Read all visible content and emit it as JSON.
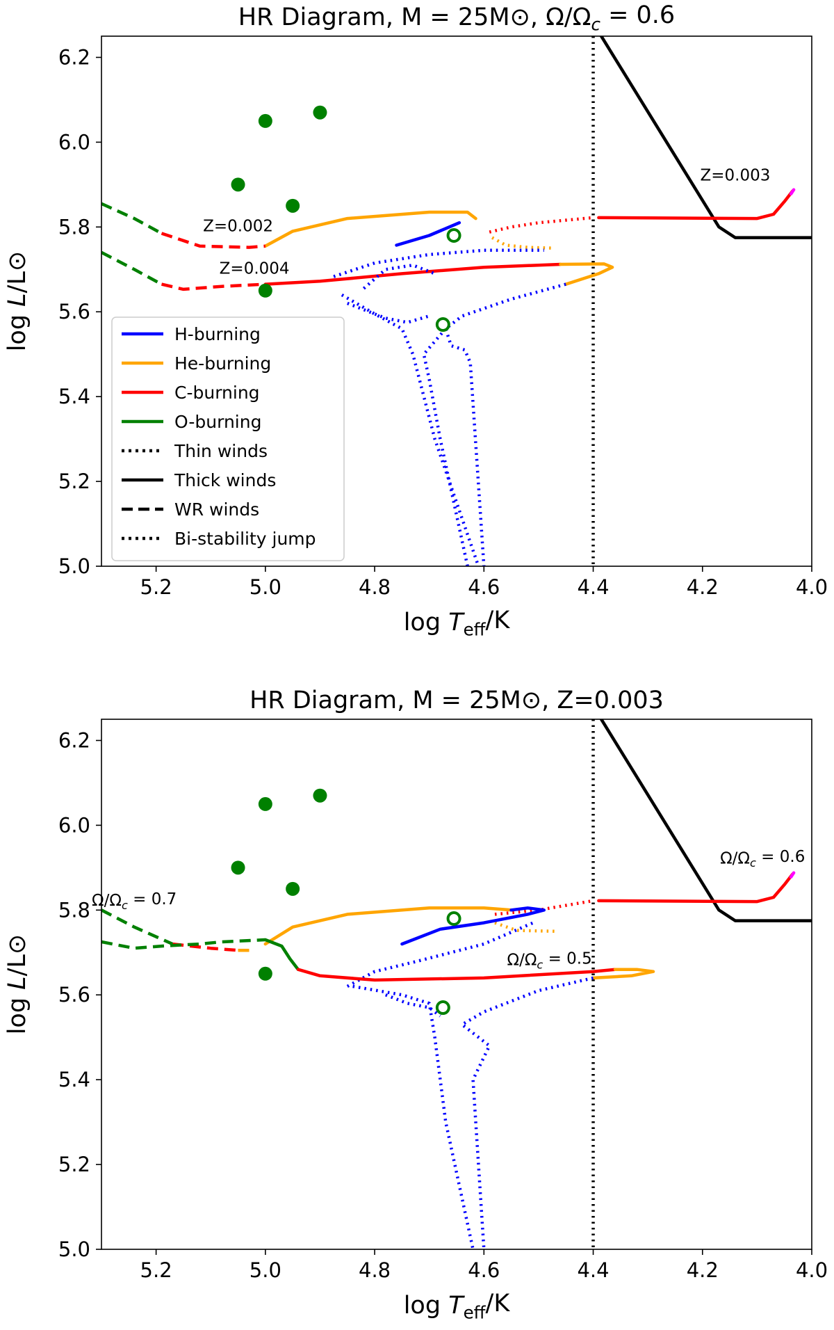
{
  "chart_data": [
    {
      "type": "line",
      "title": "HR Diagram, M = 25M⊙, Ω/Ωc = 0.6",
      "xlabel": "log Teff/K",
      "ylabel": "log L/L⊙",
      "xlim": [
        5.3,
        4.0
      ],
      "ylim": [
        5.0,
        6.25
      ],
      "xticks": [
        "5.2",
        "5.0",
        "4.8",
        "4.6",
        "4.4",
        "4.2",
        "4.0"
      ],
      "yticks": [
        "5.0",
        "5.2",
        "5.4",
        "5.6",
        "5.8",
        "6.0",
        "6.2"
      ],
      "grid": false,
      "legend_position": "lower-left",
      "legend": [
        {
          "label": "H-burning",
          "color": "#0000ff",
          "style": "solid"
        },
        {
          "label": "He-burning",
          "color": "#ffa500",
          "style": "solid"
        },
        {
          "label": "C-burning",
          "color": "#ff0000",
          "style": "solid"
        },
        {
          "label": "O-burning",
          "color": "#008000",
          "style": "solid"
        },
        {
          "label": "Thin winds",
          "color": "#000000",
          "style": "dotted"
        },
        {
          "label": "Thick winds",
          "color": "#000000",
          "style": "solid"
        },
        {
          "label": "WR winds",
          "color": "#000000",
          "style": "dashed"
        },
        {
          "label": "Bi-stability jump",
          "color": "#000000",
          "style": "dotted"
        }
      ],
      "vline": {
        "x": 4.4,
        "style": "dotted",
        "color": "#000000"
      },
      "markers": {
        "filled": [
          [
            5.0,
            6.05
          ],
          [
            4.9,
            6.07
          ],
          [
            5.05,
            5.9
          ],
          [
            4.95,
            5.85
          ],
          [
            5.0,
            5.65
          ]
        ],
        "open": [
          [
            4.655,
            5.78
          ],
          [
            4.675,
            5.57
          ]
        ],
        "color": "#008000"
      },
      "annotations": [
        {
          "text": "Z=0.002",
          "x": 5.05,
          "y": 5.79
        },
        {
          "text": "Z=0.004",
          "x": 5.02,
          "y": 5.69
        },
        {
          "text": "Z=0.003",
          "x": 4.14,
          "y": 5.91
        }
      ],
      "series": [
        {
          "color": "#000000",
          "style": "solid",
          "points": [
            [
              4.39,
              6.26
            ],
            [
              4.17,
              5.8
            ],
            [
              4.14,
              5.775
            ],
            [
              4.0,
              5.775
            ]
          ]
        },
        {
          "color": "#ff0000",
          "style": "solid",
          "points": [
            [
              4.39,
              5.822
            ],
            [
              4.1,
              5.82
            ],
            [
              4.07,
              5.83
            ],
            [
              4.05,
              5.86
            ],
            [
              4.035,
              5.885
            ]
          ]
        },
        {
          "color": "#ff00ff",
          "style": "solid",
          "points": [
            [
              4.038,
              5.878
            ],
            [
              4.033,
              5.888
            ]
          ]
        },
        {
          "color": "#ff0000",
          "style": "dotted",
          "points": [
            [
              4.59,
              5.788
            ],
            [
              4.55,
              5.8
            ],
            [
              4.5,
              5.81
            ],
            [
              4.4,
              5.822
            ]
          ]
        },
        {
          "color": "#ffa500",
          "style": "dotted",
          "points": [
            [
              4.585,
              5.775
            ],
            [
              4.56,
              5.757
            ],
            [
              4.52,
              5.752
            ],
            [
              4.47,
              5.75
            ]
          ]
        },
        {
          "color": "#0000ff",
          "style": "dotted",
          "points": [
            [
              4.875,
              5.683
            ],
            [
              4.8,
              5.715
            ],
            [
              4.7,
              5.735
            ],
            [
              4.6,
              5.745
            ],
            [
              4.49,
              5.745
            ]
          ]
        },
        {
          "color": "#0000ff",
          "style": "solid",
          "points": [
            [
              4.76,
              5.757
            ],
            [
              4.7,
              5.78
            ],
            [
              4.645,
              5.81
            ]
          ]
        },
        {
          "color": "#ffa500",
          "style": "solid",
          "points": [
            [
              5.0,
              5.755
            ],
            [
              4.95,
              5.79
            ],
            [
              4.85,
              5.82
            ],
            [
              4.7,
              5.835
            ],
            [
              4.63,
              5.835
            ],
            [
              4.615,
              5.82
            ]
          ]
        },
        {
          "color": "#ff0000",
          "style": "dashed",
          "points": [
            [
              5.19,
              5.785
            ],
            [
              5.12,
              5.755
            ],
            [
              5.03,
              5.752
            ],
            [
              5.0,
              5.755
            ]
          ]
        },
        {
          "color": "#008000",
          "style": "dashed",
          "points": [
            [
              5.3,
              5.855
            ],
            [
              5.24,
              5.82
            ],
            [
              5.19,
              5.785
            ]
          ]
        },
        {
          "color": "#ff0000",
          "style": "solid",
          "points": [
            [
              5.0,
              5.665
            ],
            [
              4.9,
              5.672
            ],
            [
              4.75,
              5.69
            ],
            [
              4.6,
              5.705
            ],
            [
              4.46,
              5.712
            ]
          ]
        },
        {
          "color": "#ffa500",
          "style": "solid",
          "points": [
            [
              4.46,
              5.712
            ],
            [
              4.38,
              5.713
            ],
            [
              4.365,
              5.705
            ],
            [
              4.39,
              5.69
            ],
            [
              4.45,
              5.665
            ]
          ]
        },
        {
          "color": "#ff0000",
          "style": "dashed",
          "points": [
            [
              5.19,
              5.665
            ],
            [
              5.15,
              5.653
            ],
            [
              5.08,
              5.66
            ],
            [
              5.0,
              5.665
            ]
          ]
        },
        {
          "color": "#008000",
          "style": "dashed",
          "points": [
            [
              5.3,
              5.74
            ],
            [
              5.24,
              5.7
            ],
            [
              5.19,
              5.665
            ]
          ]
        },
        {
          "color": "#0000ff",
          "style": "dotted",
          "points": [
            [
              4.45,
              5.665
            ],
            [
              4.55,
              5.63
            ],
            [
              4.64,
              5.59
            ],
            [
              4.67,
              5.56
            ],
            [
              4.66,
              5.52
            ],
            [
              4.635,
              5.51
            ],
            [
              4.625,
              5.48
            ],
            [
              4.6,
              5.0
            ]
          ]
        },
        {
          "color": "#0000ff",
          "style": "dotted",
          "points": [
            [
              4.67,
              5.56
            ],
            [
              4.71,
              5.5
            ],
            [
              4.7,
              5.44
            ],
            [
              4.68,
              5.3
            ],
            [
              4.63,
              5.0
            ]
          ]
        },
        {
          "color": "#0000ff",
          "style": "dotted",
          "points": [
            [
              4.82,
              5.655
            ],
            [
              4.78,
              5.7
            ],
            [
              4.73,
              5.71
            ],
            [
              4.69,
              5.69
            ]
          ]
        },
        {
          "color": "#0000ff",
          "style": "dotted",
          "points": [
            [
              4.86,
              5.64
            ],
            [
              4.8,
              5.595
            ],
            [
              4.75,
              5.56
            ],
            [
              4.73,
              5.5
            ],
            [
              4.72,
              5.45
            ],
            [
              4.69,
              5.3
            ],
            [
              4.61,
              5.0
            ]
          ]
        },
        {
          "color": "#0000ff",
          "style": "dotted",
          "points": [
            [
              4.85,
              5.62
            ],
            [
              4.78,
              5.585
            ],
            [
              4.74,
              5.575
            ],
            [
              4.7,
              5.59
            ]
          ]
        }
      ]
    },
    {
      "type": "line",
      "title": "HR Diagram, M = 25M⊙, Z=0.003",
      "xlabel": "log Teff/K",
      "ylabel": "log L/L⊙",
      "xlim": [
        5.3,
        4.0
      ],
      "ylim": [
        5.0,
        6.25
      ],
      "xticks": [
        "5.2",
        "5.0",
        "4.8",
        "4.6",
        "4.4",
        "4.2",
        "4.0"
      ],
      "yticks": [
        "5.0",
        "5.2",
        "5.4",
        "5.6",
        "5.8",
        "6.0",
        "6.2"
      ],
      "grid": false,
      "vline": {
        "x": 4.4,
        "style": "dotted",
        "color": "#000000"
      },
      "markers": {
        "filled": [
          [
            5.0,
            6.05
          ],
          [
            4.9,
            6.07
          ],
          [
            5.05,
            5.9
          ],
          [
            4.95,
            5.85
          ],
          [
            5.0,
            5.65
          ]
        ],
        "open": [
          [
            4.655,
            5.78
          ],
          [
            4.675,
            5.57
          ]
        ],
        "color": "#008000"
      },
      "annotations": [
        {
          "text": "Ω/Ωc = 0.7",
          "x": 5.24,
          "y": 5.81
        },
        {
          "text": "Ω/Ωc = 0.6",
          "x": 4.09,
          "y": 5.91
        },
        {
          "text": "Ω/Ωc = 0.5",
          "x": 4.48,
          "y": 5.67
        }
      ],
      "series": [
        {
          "color": "#000000",
          "style": "solid",
          "points": [
            [
              4.39,
              6.26
            ],
            [
              4.17,
              5.8
            ],
            [
              4.14,
              5.775
            ],
            [
              4.0,
              5.775
            ]
          ]
        },
        {
          "color": "#ff0000",
          "style": "solid",
          "points": [
            [
              4.39,
              5.822
            ],
            [
              4.1,
              5.82
            ],
            [
              4.07,
              5.83
            ],
            [
              4.05,
              5.86
            ],
            [
              4.035,
              5.885
            ]
          ]
        },
        {
          "color": "#ff00ff",
          "style": "solid",
          "points": [
            [
              4.038,
              5.878
            ],
            [
              4.033,
              5.888
            ]
          ]
        },
        {
          "color": "#ff0000",
          "style": "dotted",
          "points": [
            [
              4.58,
              5.79
            ],
            [
              4.5,
              5.8
            ],
            [
              4.4,
              5.822
            ]
          ]
        },
        {
          "color": "#ffa500",
          "style": "dotted",
          "points": [
            [
              4.58,
              5.77
            ],
            [
              4.54,
              5.752
            ],
            [
              4.47,
              5.75
            ]
          ]
        },
        {
          "color": "#ffa500",
          "style": "solid",
          "points": [
            [
              5.0,
              5.72
            ],
            [
              4.95,
              5.76
            ],
            [
              4.85,
              5.79
            ],
            [
              4.7,
              5.805
            ],
            [
              4.6,
              5.805
            ],
            [
              4.55,
              5.8
            ]
          ]
        },
        {
          "color": "#0000ff",
          "style": "solid",
          "points": [
            [
              4.75,
              5.72
            ],
            [
              4.68,
              5.755
            ],
            [
              4.6,
              5.77
            ],
            [
              4.52,
              5.79
            ],
            [
              4.49,
              5.8
            ],
            [
              4.52,
              5.805
            ],
            [
              4.55,
              5.8
            ]
          ]
        },
        {
          "color": "#0000ff",
          "style": "dotted",
          "points": [
            [
              4.85,
              5.62
            ],
            [
              4.8,
              5.655
            ],
            [
              4.72,
              5.68
            ],
            [
              4.6,
              5.72
            ],
            [
              4.51,
              5.77
            ]
          ]
        },
        {
          "color": "#ff0000",
          "style": "dashed",
          "points": [
            [
              5.17,
              5.72
            ],
            [
              5.1,
              5.71
            ],
            [
              5.05,
              5.705
            ]
          ]
        },
        {
          "color": "#ffa500",
          "style": "dashed",
          "points": [
            [
              5.05,
              5.705
            ],
            [
              5.02,
              5.705
            ]
          ]
        },
        {
          "color": "#008000",
          "style": "dashed",
          "points": [
            [
              5.3,
              5.8
            ],
            [
              5.24,
              5.76
            ],
            [
              5.17,
              5.72
            ]
          ]
        },
        {
          "color": "#008000",
          "style": "dashed",
          "points": [
            [
              5.3,
              5.725
            ],
            [
              5.24,
              5.71
            ],
            [
              5.19,
              5.715
            ],
            [
              5.12,
              5.72
            ],
            [
              5.08,
              5.725
            ],
            [
              5.0,
              5.73
            ]
          ]
        },
        {
          "color": "#008000",
          "style": "solid",
          "points": [
            [
              5.0,
              5.73
            ],
            [
              4.97,
              5.715
            ],
            [
              4.955,
              5.685
            ],
            [
              4.94,
              5.66
            ]
          ]
        },
        {
          "color": "#ff0000",
          "style": "solid",
          "points": [
            [
              4.94,
              5.66
            ],
            [
              4.9,
              5.645
            ],
            [
              4.8,
              5.635
            ],
            [
              4.6,
              5.64
            ],
            [
              4.4,
              5.655
            ],
            [
              4.36,
              5.66
            ]
          ]
        },
        {
          "color": "#ffa500",
          "style": "solid",
          "points": [
            [
              4.36,
              5.66
            ],
            [
              4.32,
              5.66
            ],
            [
              4.29,
              5.655
            ],
            [
              4.33,
              5.645
            ],
            [
              4.4,
              5.64
            ]
          ]
        },
        {
          "color": "#0000ff",
          "style": "dotted",
          "points": [
            [
              4.4,
              5.64
            ],
            [
              4.5,
              5.61
            ],
            [
              4.6,
              5.56
            ],
            [
              4.64,
              5.53
            ],
            [
              4.62,
              5.51
            ],
            [
              4.59,
              5.48
            ],
            [
              4.62,
              5.4
            ],
            [
              4.6,
              5.0
            ]
          ]
        },
        {
          "color": "#0000ff",
          "style": "dotted",
          "points": [
            [
              4.84,
              5.62
            ],
            [
              4.75,
              5.6
            ],
            [
              4.7,
              5.58
            ],
            [
              4.69,
              5.5
            ],
            [
              4.67,
              5.3
            ],
            [
              4.62,
              5.0
            ]
          ]
        },
        {
          "color": "#0000ff",
          "style": "dotted",
          "points": [
            [
              4.78,
              5.6
            ],
            [
              4.74,
              5.58
            ],
            [
              4.7,
              5.57
            ],
            [
              4.68,
              5.55
            ]
          ]
        }
      ]
    }
  ]
}
